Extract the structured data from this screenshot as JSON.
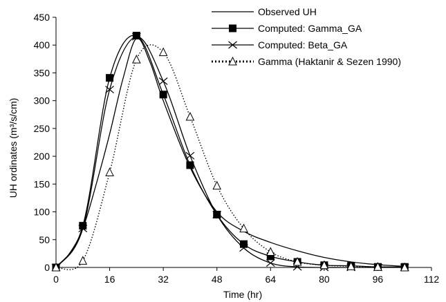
{
  "chart_data": {
    "type": "line",
    "xlabel": "Time (hr)",
    "ylabel": "UH ordinates (m³/s/cm)",
    "xlim": [
      0,
      112
    ],
    "ylim": [
      0,
      450
    ],
    "xticks": [
      0,
      16,
      32,
      48,
      64,
      80,
      96,
      112
    ],
    "yticks": [
      0,
      50,
      100,
      150,
      200,
      250,
      300,
      350,
      400,
      450
    ],
    "grid": false,
    "legend_position": "top-right",
    "series": [
      {
        "name": "Observed UH",
        "style": "solid",
        "marker": "none",
        "color": "#000000",
        "x": [
          0,
          4,
          8,
          12,
          16,
          20,
          24,
          28,
          32,
          40,
          48,
          56,
          64,
          72,
          80,
          88,
          96,
          104
        ],
        "y": [
          0,
          25,
          70,
          150,
          240,
          340,
          412,
          370,
          300,
          180,
          100,
          65,
          45,
          30,
          18,
          10,
          5,
          2
        ]
      },
      {
        "name": "Computed: Gamma_GA",
        "style": "solid",
        "marker": "square",
        "color": "#000000",
        "x": [
          0,
          8,
          16,
          24,
          32,
          40,
          48,
          56,
          64,
          72,
          80,
          88,
          96,
          104
        ],
        "y": [
          0,
          75,
          341,
          417,
          311,
          184,
          95,
          42,
          20,
          10,
          4,
          3,
          1,
          1
        ]
      },
      {
        "name": "Computed: Beta_GA",
        "style": "solid",
        "marker": "x",
        "color": "#000000",
        "x": [
          0,
          8,
          16,
          24,
          32,
          40,
          48,
          56,
          64,
          72,
          80,
          88,
          96,
          104
        ],
        "y": [
          0,
          70,
          320,
          415,
          335,
          201,
          95,
          35,
          8,
          1,
          0,
          0,
          0,
          0
        ]
      },
      {
        "name": "Gamma (Haktanir & Sezen 1990)",
        "style": "dotted",
        "marker": "triangle",
        "color": "#000000",
        "x": [
          0,
          8,
          16,
          24,
          32,
          40,
          48,
          56,
          64,
          72,
          80,
          88,
          96,
          104
        ],
        "y": [
          0,
          12,
          171,
          374,
          387,
          271,
          147,
          70,
          28,
          10,
          4,
          2,
          1,
          0
        ]
      }
    ]
  }
}
